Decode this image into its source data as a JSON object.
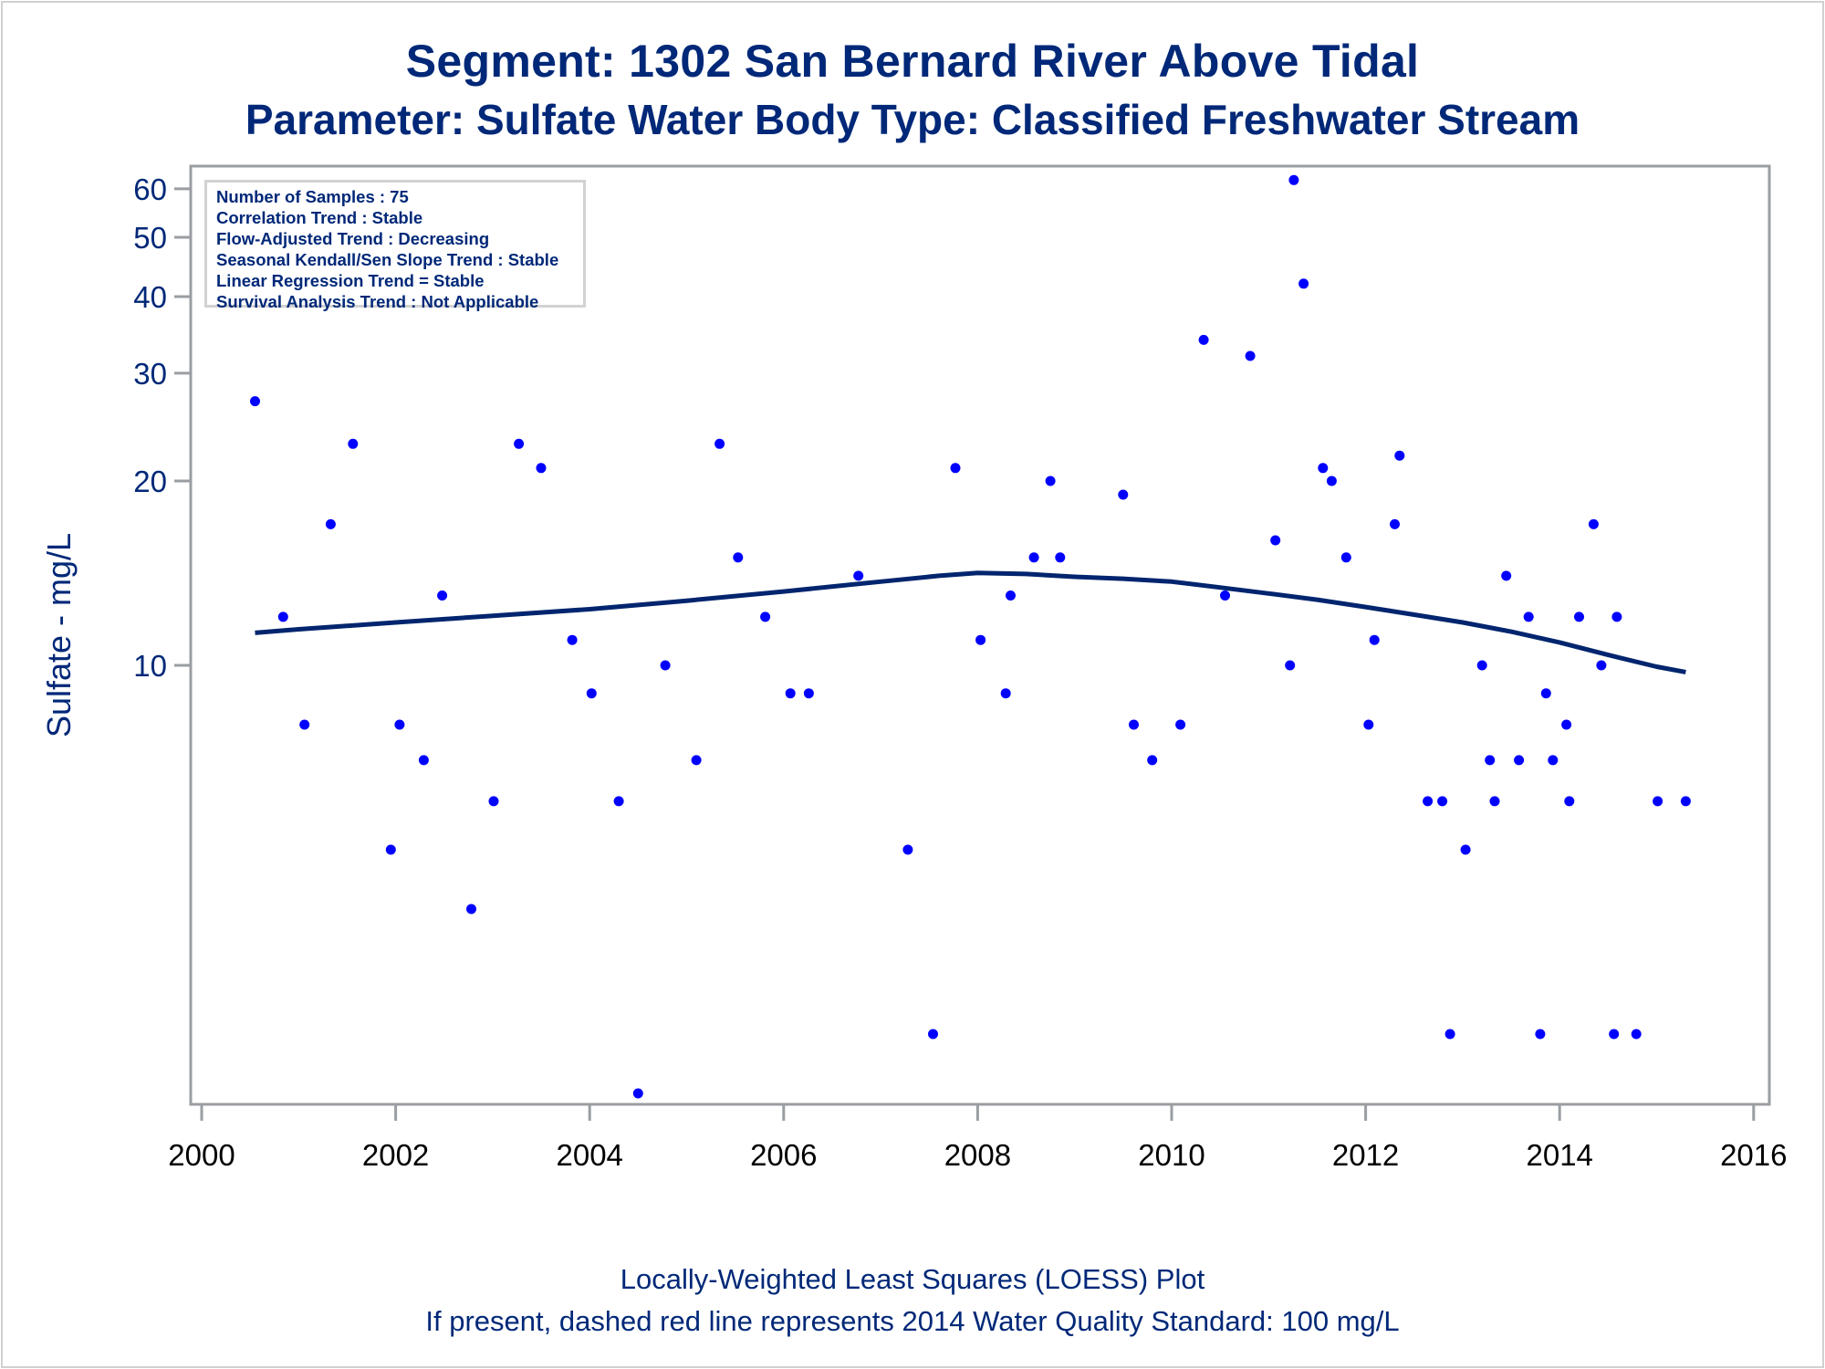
{
  "header": {
    "title_line1": "Segment: 1302  San Bernard River Above Tidal",
    "title_line2": "Parameter: Sulfate   Water Body Type: Classified Freshwater Stream"
  },
  "info_box": {
    "lines": [
      "Number of Samples : 75",
      "Correlation Trend : Stable",
      "Flow-Adjusted Trend : Decreasing",
      "Seasonal Kendall/Sen Slope Trend : Stable",
      "Linear Regression Trend = Stable",
      "Survival Analysis Trend : Not Applicable"
    ]
  },
  "footer": {
    "line1": "Locally-Weighted Least Squares (LOESS) Plot",
    "line2": "If present, dashed red line represents 2014 Water Quality Standard: 100   mg/L"
  },
  "colors": {
    "text": "#002878",
    "points": "#0000ff",
    "loess_line": "#00256e",
    "axis": "#9a9ea2"
  },
  "chart_data": {
    "type": "scatter",
    "title": "Segment: 1302  San Bernard River Above Tidal",
    "subtitle": "Parameter: Sulfate   Water Body Type: Classified Freshwater Stream",
    "xlabel": "",
    "ylabel": "Sulfate - mg/L",
    "x_ticks": [
      "2000",
      "2002",
      "2004",
      "2006",
      "2008",
      "2010",
      "2012",
      "2014",
      "2016"
    ],
    "x_tick_values": [
      2000,
      2002,
      2004,
      2006,
      2008,
      2010,
      2012,
      2014,
      2016
    ],
    "y_ticks": [
      "10",
      "20",
      "30",
      "40",
      "50",
      "60"
    ],
    "y_tick_values": [
      10,
      20,
      30,
      40,
      50,
      60
    ],
    "y_scale": "log",
    "xlim": [
      1999.9,
      2016.2
    ],
    "ylim": [
      1.92,
      65
    ],
    "grid": false,
    "legend": "none",
    "series": [
      {
        "name": "Samples",
        "kind": "points",
        "points": [
          [
            2000.55,
            27
          ],
          [
            2000.84,
            12
          ],
          [
            2001.06,
            8
          ],
          [
            2001.33,
            17
          ],
          [
            2001.56,
            23
          ],
          [
            2001.95,
            5
          ],
          [
            2002.04,
            8
          ],
          [
            2002.29,
            7
          ],
          [
            2002.48,
            13
          ],
          [
            2002.78,
            4
          ],
          [
            2003.01,
            6
          ],
          [
            2003.27,
            23
          ],
          [
            2003.5,
            21
          ],
          [
            2003.82,
            11
          ],
          [
            2004.02,
            9
          ],
          [
            2004.3,
            6
          ],
          [
            2004.5,
            2.0
          ],
          [
            2004.78,
            10
          ],
          [
            2005.1,
            7
          ],
          [
            2005.34,
            23
          ],
          [
            2005.53,
            15
          ],
          [
            2005.81,
            12
          ],
          [
            2006.07,
            9
          ],
          [
            2006.26,
            9
          ],
          [
            2006.77,
            14
          ],
          [
            2007.28,
            5
          ],
          [
            2007.54,
            2.5
          ],
          [
            2007.77,
            21
          ],
          [
            2008.03,
            11
          ],
          [
            2008.29,
            9
          ],
          [
            2008.34,
            13
          ],
          [
            2008.58,
            15
          ],
          [
            2008.75,
            20
          ],
          [
            2008.85,
            15
          ],
          [
            2009.5,
            19
          ],
          [
            2009.61,
            8
          ],
          [
            2009.8,
            7
          ],
          [
            2010.09,
            8
          ],
          [
            2010.33,
            34
          ],
          [
            2010.55,
            13
          ],
          [
            2010.81,
            32
          ],
          [
            2011.07,
            16
          ],
          [
            2011.22,
            10
          ],
          [
            2011.26,
            62
          ],
          [
            2011.36,
            42
          ],
          [
            2011.56,
            21
          ],
          [
            2011.65,
            20
          ],
          [
            2011.8,
            15
          ],
          [
            2012.03,
            8
          ],
          [
            2012.09,
            11
          ],
          [
            2012.3,
            17
          ],
          [
            2012.35,
            22
          ],
          [
            2012.64,
            6
          ],
          [
            2012.79,
            6
          ],
          [
            2012.87,
            2.5
          ],
          [
            2013.03,
            5
          ],
          [
            2013.2,
            10
          ],
          [
            2013.28,
            7
          ],
          [
            2013.33,
            6
          ],
          [
            2013.45,
            14
          ],
          [
            2013.58,
            7
          ],
          [
            2013.68,
            12
          ],
          [
            2013.8,
            2.5
          ],
          [
            2013.86,
            9
          ],
          [
            2013.93,
            7
          ],
          [
            2014.07,
            8
          ],
          [
            2014.1,
            6
          ],
          [
            2014.2,
            12
          ],
          [
            2014.35,
            17
          ],
          [
            2014.43,
            10
          ],
          [
            2014.56,
            2.5
          ],
          [
            2014.59,
            12
          ],
          [
            2014.79,
            2.5
          ],
          [
            2015.01,
            6
          ],
          [
            2015.3,
            6
          ]
        ]
      },
      {
        "name": "LOESS",
        "kind": "line",
        "points": [
          [
            2000.55,
            11.3
          ],
          [
            2001.0,
            11.45
          ],
          [
            2002.0,
            11.75
          ],
          [
            2003.0,
            12.05
          ],
          [
            2004.0,
            12.35
          ],
          [
            2005.0,
            12.75
          ],
          [
            2006.0,
            13.2
          ],
          [
            2007.0,
            13.7
          ],
          [
            2007.6,
            14.0
          ],
          [
            2008.0,
            14.15
          ],
          [
            2008.5,
            14.1
          ],
          [
            2009.0,
            13.95
          ],
          [
            2009.5,
            13.85
          ],
          [
            2010.0,
            13.7
          ],
          [
            2010.5,
            13.4
          ],
          [
            2011.0,
            13.1
          ],
          [
            2011.5,
            12.8
          ],
          [
            2012.0,
            12.45
          ],
          [
            2012.5,
            12.1
          ],
          [
            2013.0,
            11.75
          ],
          [
            2013.5,
            11.35
          ],
          [
            2014.0,
            10.9
          ],
          [
            2014.5,
            10.4
          ],
          [
            2015.0,
            9.95
          ],
          [
            2015.3,
            9.75
          ]
        ]
      }
    ]
  }
}
